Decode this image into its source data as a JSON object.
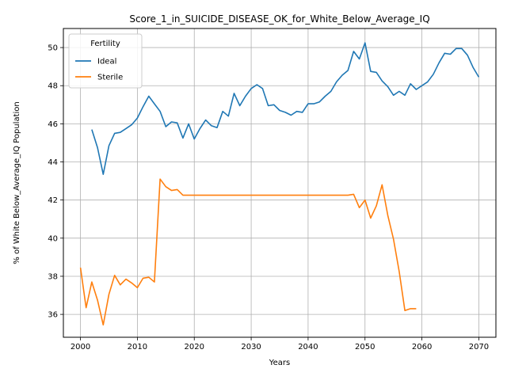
{
  "chart_data": {
    "type": "line",
    "title": "Score_1_in_SUICIDE_DISEASE_OK_for_White_Below_Average_IQ",
    "xlabel": "Years",
    "ylabel": "% of White Below_Average_IQ Population",
    "xlim": [
      1997,
      2073
    ],
    "ylim": [
      34.8,
      51.0
    ],
    "xticks": [
      2000,
      2010,
      2020,
      2030,
      2040,
      2050,
      2060,
      2070
    ],
    "yticks": [
      36,
      38,
      40,
      42,
      44,
      46,
      48,
      50
    ],
    "grid": true,
    "legend": {
      "title": "Fertility",
      "placement": "top-left"
    },
    "series": [
      {
        "name": "Ideal",
        "color": "#1f77b4",
        "x": [
          2002,
          2003,
          2004,
          2005,
          2006,
          2007,
          2008,
          2009,
          2010,
          2011,
          2012,
          2013,
          2014,
          2015,
          2016,
          2017,
          2018,
          2019,
          2020,
          2021,
          2022,
          2023,
          2024,
          2025,
          2026,
          2027,
          2028,
          2029,
          2030,
          2031,
          2032,
          2033,
          2034,
          2035,
          2036,
          2037,
          2038,
          2039,
          2040,
          2041,
          2042,
          2043,
          2044,
          2045,
          2046,
          2047,
          2048,
          2049,
          2050,
          2051,
          2052,
          2053,
          2054,
          2055,
          2056,
          2057,
          2058,
          2059,
          2060,
          2061,
          2062,
          2063,
          2064,
          2065,
          2066,
          2067,
          2068,
          2069,
          2070
        ],
        "values": [
          45.7,
          44.75,
          43.35,
          44.85,
          45.5,
          45.55,
          45.75,
          45.95,
          46.3,
          46.9,
          47.45,
          47.05,
          46.65,
          45.85,
          46.1,
          46.05,
          45.25,
          46.0,
          45.2,
          45.75,
          46.2,
          45.9,
          45.8,
          46.65,
          46.4,
          47.6,
          46.95,
          47.45,
          47.85,
          48.05,
          47.85,
          46.95,
          47.0,
          46.7,
          46.6,
          46.45,
          46.65,
          46.6,
          47.05,
          47.05,
          47.15,
          47.45,
          47.7,
          48.2,
          48.55,
          48.8,
          49.8,
          49.4,
          50.25,
          48.75,
          48.7,
          48.25,
          47.95,
          47.5,
          47.7,
          47.5,
          48.1,
          47.8,
          48.0,
          48.2,
          48.6,
          49.2,
          49.7,
          49.65,
          49.95,
          49.95,
          49.6,
          48.95,
          48.45
        ]
      },
      {
        "name": "Sterile",
        "color": "#ff7f0e",
        "x": [
          2000,
          2001,
          2002,
          2003,
          2004,
          2005,
          2006,
          2007,
          2008,
          2009,
          2010,
          2011,
          2012,
          2013,
          2014,
          2015,
          2016,
          2017,
          2018,
          2019,
          2020,
          2021,
          2022,
          2023,
          2024,
          2025,
          2026,
          2027,
          2028,
          2029,
          2030,
          2031,
          2032,
          2033,
          2034,
          2035,
          2036,
          2037,
          2038,
          2039,
          2040,
          2041,
          2042,
          2043,
          2044,
          2045,
          2046,
          2047,
          2048,
          2049,
          2050,
          2051,
          2052,
          2053,
          2054,
          2055,
          2056,
          2057,
          2058,
          2059
        ],
        "values": [
          38.45,
          36.35,
          37.7,
          36.75,
          35.45,
          37.05,
          38.05,
          37.55,
          37.85,
          37.65,
          37.4,
          37.9,
          37.95,
          37.7,
          43.1,
          42.7,
          42.5,
          42.55,
          42.25,
          42.25,
          42.25,
          42.25,
          42.25,
          42.25,
          42.25,
          42.25,
          42.25,
          42.25,
          42.25,
          42.25,
          42.25,
          42.25,
          42.25,
          42.25,
          42.25,
          42.25,
          42.25,
          42.25,
          42.25,
          42.25,
          42.25,
          42.25,
          42.25,
          42.25,
          42.25,
          42.25,
          42.25,
          42.25,
          42.3,
          41.6,
          42.0,
          41.05,
          41.7,
          42.8,
          41.2,
          39.95,
          38.25,
          36.2,
          36.3,
          36.3
        ]
      }
    ]
  }
}
